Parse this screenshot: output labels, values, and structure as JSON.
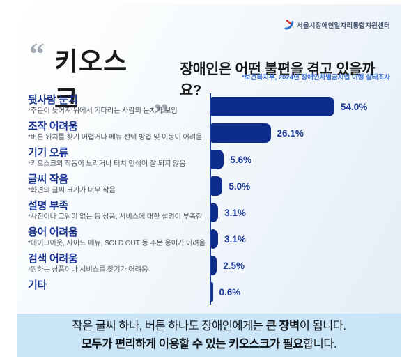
{
  "header": {
    "logo_text": "서울시장애인일자리통합지원센터"
  },
  "title": {
    "quote_open": "“",
    "quote_close": "„",
    "keyword": "키오스크",
    "question": "장애인은 어떤 불편을 겪고 있을까요?",
    "source": "*보건복지부, 2024년 장애인차별금지법 이행 실태조사"
  },
  "chart_data": {
    "type": "bar",
    "orientation": "horizontal",
    "unit": "%",
    "xlim": [
      0,
      60
    ],
    "bar_color": "#0e2c8c",
    "grid": false,
    "legend": false,
    "categories": [
      "뒷사람 눈치",
      "조작 어려움",
      "기기 오류",
      "글씨 작음",
      "설명 부족",
      "용어 어려움",
      "검색 어려움",
      "기타"
    ],
    "values": [
      54.0,
      26.1,
      5.6,
      5.0,
      3.1,
      3.1,
      2.5,
      0.6
    ],
    "items": [
      {
        "label": "뒷사람 눈치",
        "desc": "*주문이 늦어져 뒤에서 기다리는 사람의 눈치가 보임",
        "value": 54.0,
        "value_label": "54.0%"
      },
      {
        "label": "조작 어려움",
        "desc": "*버튼 위치를 찾기 어렵거나 메뉴 선택 방법 및 이동이 어려움",
        "value": 26.1,
        "value_label": "26.1%"
      },
      {
        "label": "기기 오류",
        "desc": "*키오스크의 작동이 느리거나 터치 인식이 잘 되지 않음",
        "value": 5.6,
        "value_label": "5.6%"
      },
      {
        "label": "글씨 작음",
        "desc": "*화면의 글씨 크기가 너무 작음",
        "value": 5.0,
        "value_label": "5.0%"
      },
      {
        "label": "설명 부족",
        "desc": "*사진이나 그림이 없는 등 상품, 서비스에 대한 설명이 부족함",
        "value": 3.1,
        "value_label": "3.1%"
      },
      {
        "label": "용어 어려움",
        "desc": "*테이크아웃, 사이드 메뉴, SOLD OUT 등 주문 용어가 어려움",
        "value": 3.1,
        "value_label": "3.1%"
      },
      {
        "label": "검색 어려움",
        "desc": "*원하는 상품이나 서비스를 찾기가 어려움",
        "value": 2.5,
        "value_label": "2.5%"
      },
      {
        "label": "기타",
        "desc": "",
        "value": 0.6,
        "value_label": "0.6%"
      }
    ]
  },
  "footer": {
    "line1_pre": "작은 글씨 하나, 버튼 하나도 장애인에게는 ",
    "line1_bold": "큰 장벽",
    "line1_post": "이 됩니다.",
    "line2_bold": "모두가 편리하게 이용할 수 있는 키오스크가 필요",
    "line2_post": "합니다."
  },
  "colors": {
    "bar": "#0e2c8c",
    "label_navy": "#17338f",
    "desc_gray": "#54585f",
    "source_blue": "#3a6ed0",
    "banner_bg": "#c9e5f7",
    "logo_red": "#d63333",
    "logo_blue": "#2f6fc0"
  }
}
